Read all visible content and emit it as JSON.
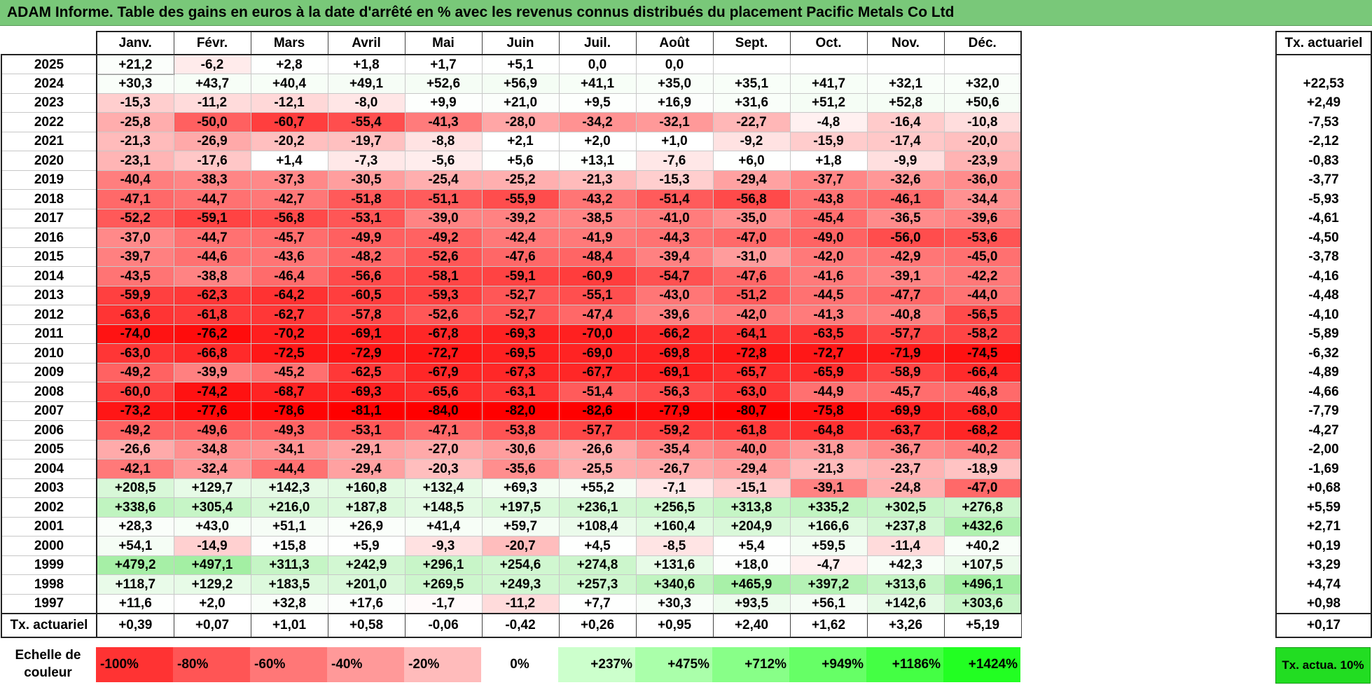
{
  "title": "ADAM Informe. Table des gains en euros à la date d'arrêté en % avec les revenus connus distribués du placement Pacific Metals Co Ltd",
  "chart_data": {
    "type": "heatmap",
    "months": [
      "Janv.",
      "Févr.",
      "Mars",
      "Avril",
      "Mai",
      "Juin",
      "Juil.",
      "Août",
      "Sept.",
      "Oct.",
      "Nov.",
      "Déc."
    ],
    "actuarial_header": "Tx. actuariel",
    "rows": [
      {
        "year": "2025",
        "values": [
          "+21,2",
          "-6,2",
          "+2,8",
          "+1,8",
          "+1,7",
          "+5,1",
          "0,0",
          "0,0",
          "",
          "",
          "",
          ""
        ],
        "rate": ""
      },
      {
        "year": "2024",
        "values": [
          "+30,3",
          "+43,7",
          "+40,4",
          "+49,1",
          "+52,6",
          "+56,9",
          "+41,1",
          "+35,0",
          "+35,1",
          "+41,7",
          "+32,1",
          "+32,0"
        ],
        "rate": "+22,53"
      },
      {
        "year": "2023",
        "values": [
          "-15,3",
          "-11,2",
          "-12,1",
          "-8,0",
          "+9,9",
          "+21,0",
          "+9,5",
          "+16,9",
          "+31,6",
          "+51,2",
          "+52,8",
          "+50,6"
        ],
        "rate": "+2,49"
      },
      {
        "year": "2022",
        "values": [
          "-25,8",
          "-50,0",
          "-60,7",
          "-55,4",
          "-41,3",
          "-28,0",
          "-34,2",
          "-32,1",
          "-22,7",
          "-4,8",
          "-16,4",
          "-10,8"
        ],
        "rate": "-7,53"
      },
      {
        "year": "2021",
        "values": [
          "-21,3",
          "-26,9",
          "-20,2",
          "-19,7",
          "-8,8",
          "+2,1",
          "+2,0",
          "+1,0",
          "-9,2",
          "-15,9",
          "-17,4",
          "-20,0"
        ],
        "rate": "-2,12"
      },
      {
        "year": "2020",
        "values": [
          "-23,1",
          "-17,6",
          "+1,4",
          "-7,3",
          "-5,6",
          "+5,6",
          "+13,1",
          "-7,6",
          "+6,0",
          "+1,8",
          "-9,9",
          "-23,9"
        ],
        "rate": "-0,83"
      },
      {
        "year": "2019",
        "values": [
          "-40,4",
          "-38,3",
          "-37,3",
          "-30,5",
          "-25,4",
          "-25,2",
          "-21,3",
          "-15,3",
          "-29,4",
          "-37,7",
          "-32,6",
          "-36,0"
        ],
        "rate": "-3,77"
      },
      {
        "year": "2018",
        "values": [
          "-47,1",
          "-44,7",
          "-42,7",
          "-51,8",
          "-51,1",
          "-55,9",
          "-43,2",
          "-51,4",
          "-56,8",
          "-43,8",
          "-46,1",
          "-34,4"
        ],
        "rate": "-5,93"
      },
      {
        "year": "2017",
        "values": [
          "-52,2",
          "-59,1",
          "-56,8",
          "-53,1",
          "-39,0",
          "-39,2",
          "-38,5",
          "-41,0",
          "-35,0",
          "-45,4",
          "-36,5",
          "-39,6"
        ],
        "rate": "-4,61"
      },
      {
        "year": "2016",
        "values": [
          "-37,0",
          "-44,7",
          "-45,7",
          "-49,9",
          "-49,2",
          "-42,4",
          "-41,9",
          "-44,3",
          "-47,0",
          "-49,0",
          "-56,0",
          "-53,6"
        ],
        "rate": "-4,50"
      },
      {
        "year": "2015",
        "values": [
          "-39,7",
          "-44,6",
          "-43,6",
          "-48,2",
          "-52,6",
          "-47,6",
          "-48,4",
          "-39,4",
          "-31,0",
          "-42,0",
          "-42,9",
          "-45,0"
        ],
        "rate": "-3,78"
      },
      {
        "year": "2014",
        "values": [
          "-43,5",
          "-38,8",
          "-46,4",
          "-56,6",
          "-58,1",
          "-59,1",
          "-60,9",
          "-54,7",
          "-47,6",
          "-41,6",
          "-39,1",
          "-42,2"
        ],
        "rate": "-4,16"
      },
      {
        "year": "2013",
        "values": [
          "-59,9",
          "-62,3",
          "-64,2",
          "-60,5",
          "-59,3",
          "-52,7",
          "-55,1",
          "-43,0",
          "-51,2",
          "-44,5",
          "-47,7",
          "-44,0"
        ],
        "rate": "-4,48"
      },
      {
        "year": "2012",
        "values": [
          "-63,6",
          "-61,8",
          "-62,7",
          "-57,8",
          "-52,6",
          "-52,7",
          "-47,4",
          "-39,6",
          "-42,0",
          "-41,3",
          "-40,8",
          "-56,5"
        ],
        "rate": "-4,10"
      },
      {
        "year": "2011",
        "values": [
          "-74,0",
          "-76,2",
          "-70,2",
          "-69,1",
          "-67,8",
          "-69,3",
          "-70,0",
          "-66,2",
          "-64,1",
          "-63,5",
          "-57,7",
          "-58,2"
        ],
        "rate": "-5,89"
      },
      {
        "year": "2010",
        "values": [
          "-63,0",
          "-66,8",
          "-72,5",
          "-72,9",
          "-72,7",
          "-69,5",
          "-69,0",
          "-69,8",
          "-72,8",
          "-72,7",
          "-71,9",
          "-74,5"
        ],
        "rate": "-6,32"
      },
      {
        "year": "2009",
        "values": [
          "-49,2",
          "-39,9",
          "-45,2",
          "-62,5",
          "-67,9",
          "-67,3",
          "-67,7",
          "-69,1",
          "-65,7",
          "-65,9",
          "-58,9",
          "-66,4"
        ],
        "rate": "-4,89"
      },
      {
        "year": "2008",
        "values": [
          "-60,0",
          "-74,2",
          "-68,7",
          "-69,3",
          "-65,6",
          "-63,1",
          "-51,4",
          "-56,3",
          "-63,0",
          "-44,9",
          "-45,7",
          "-46,8"
        ],
        "rate": "-4,66"
      },
      {
        "year": "2007",
        "values": [
          "-73,2",
          "-77,6",
          "-78,6",
          "-81,1",
          "-84,0",
          "-82,0",
          "-82,6",
          "-77,9",
          "-80,7",
          "-75,8",
          "-69,9",
          "-68,0"
        ],
        "rate": "-7,79"
      },
      {
        "year": "2006",
        "values": [
          "-49,2",
          "-49,6",
          "-49,3",
          "-53,1",
          "-47,1",
          "-53,8",
          "-57,7",
          "-59,2",
          "-61,8",
          "-64,8",
          "-63,7",
          "-68,2"
        ],
        "rate": "-4,27"
      },
      {
        "year": "2005",
        "values": [
          "-26,6",
          "-34,8",
          "-34,1",
          "-29,1",
          "-27,0",
          "-30,6",
          "-26,6",
          "-35,4",
          "-40,0",
          "-31,8",
          "-36,7",
          "-40,2"
        ],
        "rate": "-2,00"
      },
      {
        "year": "2004",
        "values": [
          "-42,1",
          "-32,4",
          "-44,4",
          "-29,4",
          "-20,3",
          "-35,6",
          "-25,5",
          "-26,7",
          "-29,4",
          "-21,3",
          "-23,7",
          "-18,9"
        ],
        "rate": "-1,69"
      },
      {
        "year": "2003",
        "values": [
          "+208,5",
          "+129,7",
          "+142,3",
          "+160,8",
          "+132,4",
          "+69,3",
          "+55,2",
          "-7,1",
          "-15,1",
          "-39,1",
          "-24,8",
          "-47,0"
        ],
        "rate": "+0,68"
      },
      {
        "year": "2002",
        "values": [
          "+338,6",
          "+305,4",
          "+216,0",
          "+187,8",
          "+148,5",
          "+197,5",
          "+236,1",
          "+256,5",
          "+313,8",
          "+335,2",
          "+302,5",
          "+276,8"
        ],
        "rate": "+5,59"
      },
      {
        "year": "2001",
        "values": [
          "+28,3",
          "+43,0",
          "+51,1",
          "+26,9",
          "+41,4",
          "+59,7",
          "+108,4",
          "+160,4",
          "+204,9",
          "+166,6",
          "+237,8",
          "+432,6"
        ],
        "rate": "+2,71"
      },
      {
        "year": "2000",
        "values": [
          "+54,1",
          "-14,9",
          "+15,8",
          "+5,9",
          "-9,3",
          "-20,7",
          "+4,5",
          "-8,5",
          "+5,4",
          "+59,5",
          "-11,4",
          "+40,2"
        ],
        "rate": "+0,19"
      },
      {
        "year": "1999",
        "values": [
          "+479,2",
          "+497,1",
          "+311,3",
          "+242,9",
          "+296,1",
          "+254,6",
          "+274,8",
          "+131,6",
          "+18,0",
          "-4,7",
          "+42,3",
          "+107,5"
        ],
        "rate": "+3,29"
      },
      {
        "year": "1998",
        "values": [
          "+118,7",
          "+129,2",
          "+183,5",
          "+201,0",
          "+269,5",
          "+249,3",
          "+257,3",
          "+340,6",
          "+465,9",
          "+397,2",
          "+313,6",
          "+496,1"
        ],
        "rate": "+4,74"
      },
      {
        "year": "1997",
        "values": [
          "+11,6",
          "+2,0",
          "+32,8",
          "+17,6",
          "-1,7",
          "-11,2",
          "+7,7",
          "+30,3",
          "+93,5",
          "+56,1",
          "+142,6",
          "+303,6"
        ],
        "rate": "+0,98"
      }
    ],
    "footer": {
      "label": "Tx. actuariel",
      "values": [
        "+0,39",
        "+0,07",
        "+1,01",
        "+0,58",
        "-0,06",
        "-0,42",
        "+0,26",
        "+0,95",
        "+2,40",
        "+1,62",
        "+3,26",
        "+5,19"
      ],
      "rate": "+0,17"
    },
    "color_scale": {
      "label": "Echelle de couleur",
      "stops": [
        {
          "label": "-100%",
          "value": -100,
          "color": "#ff3333"
        },
        {
          "label": "-80%",
          "value": -80,
          "color": "#ff5555"
        },
        {
          "label": "-60%",
          "value": -60,
          "color": "#ff7777"
        },
        {
          "label": "-40%",
          "value": -40,
          "color": "#ff9999"
        },
        {
          "label": "-20%",
          "value": -20,
          "color": "#ffbbbb"
        },
        {
          "label": "0%",
          "value": 0,
          "color": "#ffffff"
        },
        {
          "label": "+237%",
          "value": 237,
          "color": "#ccffcc"
        },
        {
          "label": "+475%",
          "value": 475,
          "color": "#aaffaa"
        },
        {
          "label": "+712%",
          "value": 712,
          "color": "#88ff88"
        },
        {
          "label": "+949%",
          "value": 949,
          "color": "#66ff66"
        },
        {
          "label": "+1186%",
          "value": 1186,
          "color": "#44ff44"
        },
        {
          "label": "+1424%",
          "value": 1424,
          "color": "#22ff22"
        }
      ],
      "actuarial_label": "Tx. actua. 10%",
      "actuarial_color": "#22dd22"
    }
  }
}
